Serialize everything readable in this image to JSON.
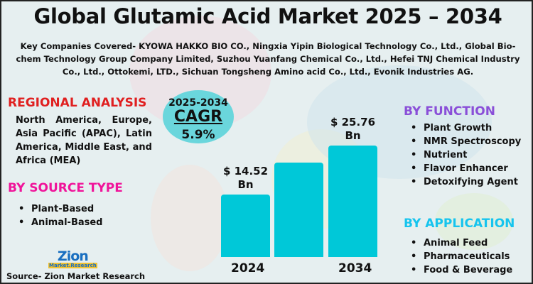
{
  "title": "Global Glutamic Acid Market 2025 – 2034",
  "companies": "Key Companies Covered- KYOWA HAKKO BIO CO., Ningxia Yipin Biological Technology Co., Ltd., Global Bio-chem Technology Group Company Limited, Suzhou Yuanfang Chemical Co., Ltd., Hefei TNJ Chemical Industry Co., Ltd., Ottokemi, LTD., Sichuan Tongsheng Amino acid Co., Ltd., Evonik Industries AG.",
  "regional": {
    "heading": "REGIONAL ANALYSIS",
    "text": "North America, Europe, Asia Pacific (APAC), Latin America, Middle East, and Africa (MEA)",
    "color": "#e02020"
  },
  "source_type": {
    "heading": "BY SOURCE TYPE",
    "items": [
      "Plant-Based",
      "Animal-Based"
    ],
    "color": "#f0149a"
  },
  "function": {
    "heading": "BY FUNCTION",
    "items": [
      "Plant Growth",
      "NMR Spectroscopy",
      "Nutrient",
      "Flavor Enhancer",
      "Detoxifying Agent"
    ],
    "color": "#8a4fd8"
  },
  "application": {
    "heading": "BY APPLICATION",
    "items": [
      "Animal Feed",
      "Pharmaceuticals",
      "Food & Beverage"
    ],
    "color": "#16c4ee"
  },
  "cagr": {
    "period": "2025-2034",
    "label": "CAGR",
    "value": "5.9%"
  },
  "logo": {
    "name": "Zion",
    "sub": "Market.Research"
  },
  "source": "Source- Zion Market Research",
  "chart_data": {
    "type": "bar",
    "categories": [
      "2024",
      "",
      "2034"
    ],
    "values": [
      14.52,
      21.9,
      25.76
    ],
    "data_labels": [
      "$ 14.52 Bn",
      "",
      "$ 25.76 Bn"
    ],
    "label_lines": [
      [
        "$ 14.52",
        "Bn"
      ],
      null,
      [
        "$ 25.76",
        "Bn"
      ]
    ],
    "unit": "USD Bn",
    "ylim": [
      0,
      26
    ],
    "bar_color": "#00c8d8",
    "grid": false
  }
}
